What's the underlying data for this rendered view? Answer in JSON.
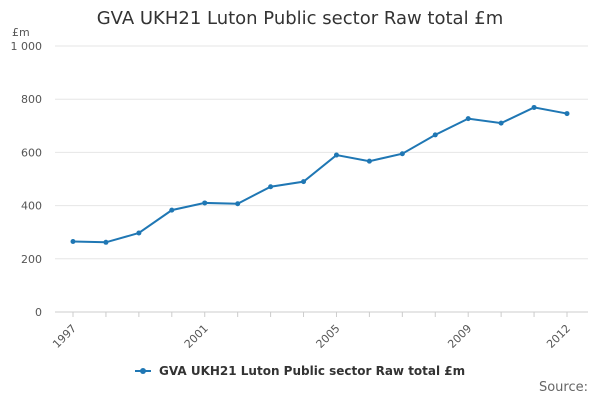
{
  "chart_data": {
    "type": "line",
    "title": "GVA UKH21 Luton Public sector Raw total £m",
    "ylabel": "£m",
    "xlabel": "",
    "x": [
      1997,
      1998,
      1999,
      2000,
      2001,
      2002,
      2003,
      2004,
      2005,
      2006,
      2007,
      2008,
      2009,
      2010,
      2011,
      2012
    ],
    "x_tick_labels": [
      "1997",
      "2001",
      "2005",
      "2009",
      "2012"
    ],
    "y_tick_labels": [
      "0",
      "200",
      "400",
      "600",
      "800",
      "1 000"
    ],
    "ylim": [
      0,
      1000
    ],
    "series": [
      {
        "name": "GVA UKH21 Luton Public sector Raw total £m",
        "values": [
          265,
          262,
          297,
          383,
          410,
          407,
          471,
          490,
          590,
          567,
          595,
          666,
          727,
          710,
          769,
          746
        ],
        "color": "#1f77b4"
      }
    ],
    "legend_position": "bottom-center",
    "grid": true
  },
  "source_label": "Source:"
}
